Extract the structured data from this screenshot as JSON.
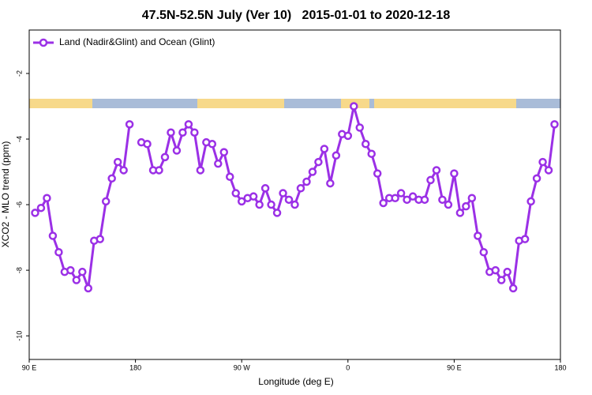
{
  "chart_data": {
    "type": "line",
    "title": "47.5N-52.5N July (Ver 10)   2015-01-01 to 2020-12-18",
    "x_label": "Longitude (deg E)",
    "y_label": "XCO2 - MLO trend (ppm)",
    "xlim": [
      90,
      540
    ],
    "ylim": [
      -10.72,
      -0.675
    ],
    "xticks": [
      {
        "value": 90,
        "label": "90 E"
      },
      {
        "value": 180,
        "label": "180"
      },
      {
        "value": 270,
        "label": "90 W"
      },
      {
        "value": 360,
        "label": "0"
      },
      {
        "value": 450,
        "label": "90 E"
      },
      {
        "value": 540,
        "label": "180"
      }
    ],
    "yticks": [
      -2,
      -4,
      -6,
      -8,
      -10
    ],
    "legend": "upper left",
    "x": [
      95,
      100,
      105,
      110,
      115,
      120,
      125,
      130,
      135,
      140,
      145,
      150,
      155,
      160,
      165,
      170,
      175,
      180,
      185,
      190,
      195,
      200,
      205,
      210,
      215,
      220,
      225,
      230,
      235,
      240,
      245,
      250,
      255,
      260,
      265,
      270,
      275,
      280,
      285,
      290,
      295,
      300,
      305,
      310,
      315,
      320,
      325,
      330,
      335,
      340,
      345,
      350,
      355,
      360,
      365,
      370,
      375,
      380,
      385,
      390,
      395,
      400,
      405,
      410,
      415,
      420,
      425,
      430,
      435,
      440,
      445,
      450,
      455,
      460,
      465,
      470,
      475,
      480,
      485,
      490,
      495,
      500,
      505,
      510,
      515,
      520,
      525,
      530,
      535
    ],
    "series": [
      {
        "name": "Land (Nadir&Glint) and Ocean (Glint)",
        "color": "#9b30e6",
        "values": [
          -6.25,
          -6.1,
          -5.8,
          -6.95,
          -7.45,
          -8.05,
          -8.0,
          -8.3,
          -8.05,
          -8.55,
          -7.1,
          -7.05,
          -5.9,
          -5.2,
          -4.7,
          -4.95,
          -3.55,
          null,
          -4.1,
          -4.15,
          -4.95,
          -4.95,
          -4.55,
          -3.8,
          -4.35,
          -3.8,
          -3.55,
          -3.8,
          -4.95,
          -4.1,
          -4.15,
          -4.75,
          -4.4,
          -5.15,
          -5.65,
          -5.9,
          -5.8,
          -5.75,
          -6.0,
          -5.5,
          -6.0,
          -6.25,
          -5.65,
          -5.85,
          -6.0,
          -5.5,
          -5.3,
          -5.0,
          -4.7,
          -4.3,
          -5.35,
          -4.5,
          -3.85,
          -3.9,
          -3.0,
          -3.65,
          -4.15,
          -4.45,
          -5.05,
          -5.95,
          -5.8,
          -5.8,
          -5.65,
          -5.85,
          -5.75,
          -5.85,
          -5.85,
          -5.25,
          -4.95,
          -5.85,
          -6.0,
          -5.05,
          -6.25,
          -6.05,
          -5.8,
          -6.95,
          -7.45,
          -8.05,
          -8.0,
          -8.3,
          -8.05,
          -8.55,
          -7.1,
          -7.05,
          -5.9,
          -5.2,
          -4.7,
          -4.95,
          -3.55
        ]
      }
    ]
  }
}
